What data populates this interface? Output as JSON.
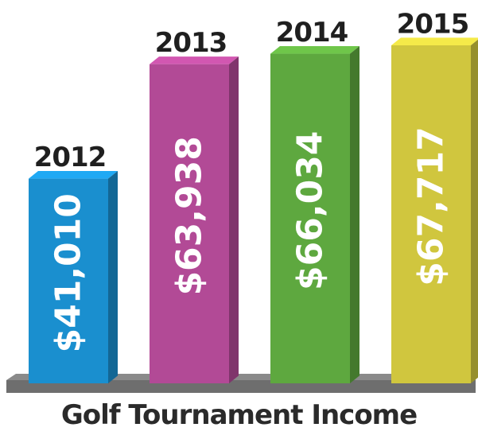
{
  "chart_data": {
    "type": "bar",
    "title": "Golf Tournament Income",
    "categories": [
      "2012",
      "2013",
      "2014",
      "2015"
    ],
    "values": [
      41010,
      63938,
      66034,
      67717
    ],
    "value_labels": [
      "$41,010",
      "$63,938",
      "$66,034",
      "$67,717"
    ],
    "colors": [
      "#1a8fcf",
      "#b24a96",
      "#5ea83f",
      "#d0c63e"
    ],
    "base_color": "#6e6e6e",
    "grid": false,
    "legend": "none"
  }
}
